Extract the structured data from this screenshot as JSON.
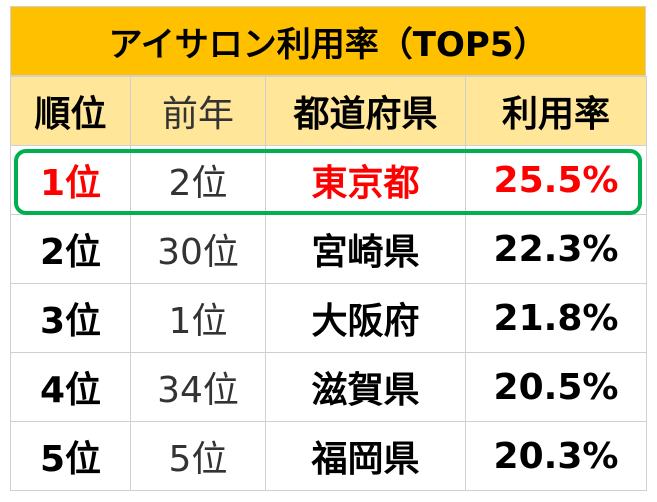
{
  "table": {
    "title": "アイサロン利用率（TOP5）",
    "header": [
      "順位",
      "前年",
      "都道府県",
      "利用率"
    ],
    "rows": [
      [
        "1位",
        "2位",
        "東京都",
        "25.5%"
      ],
      [
        "2位",
        "30位",
        "宮崎県",
        "22.3%"
      ],
      [
        "3位",
        "1位",
        "大阪府",
        "21.8%"
      ],
      [
        "4位",
        "34位",
        "滋賀県",
        "20.5%"
      ],
      [
        "5位",
        "5位",
        "福岡県",
        "20.3%"
      ]
    ]
  }
}
